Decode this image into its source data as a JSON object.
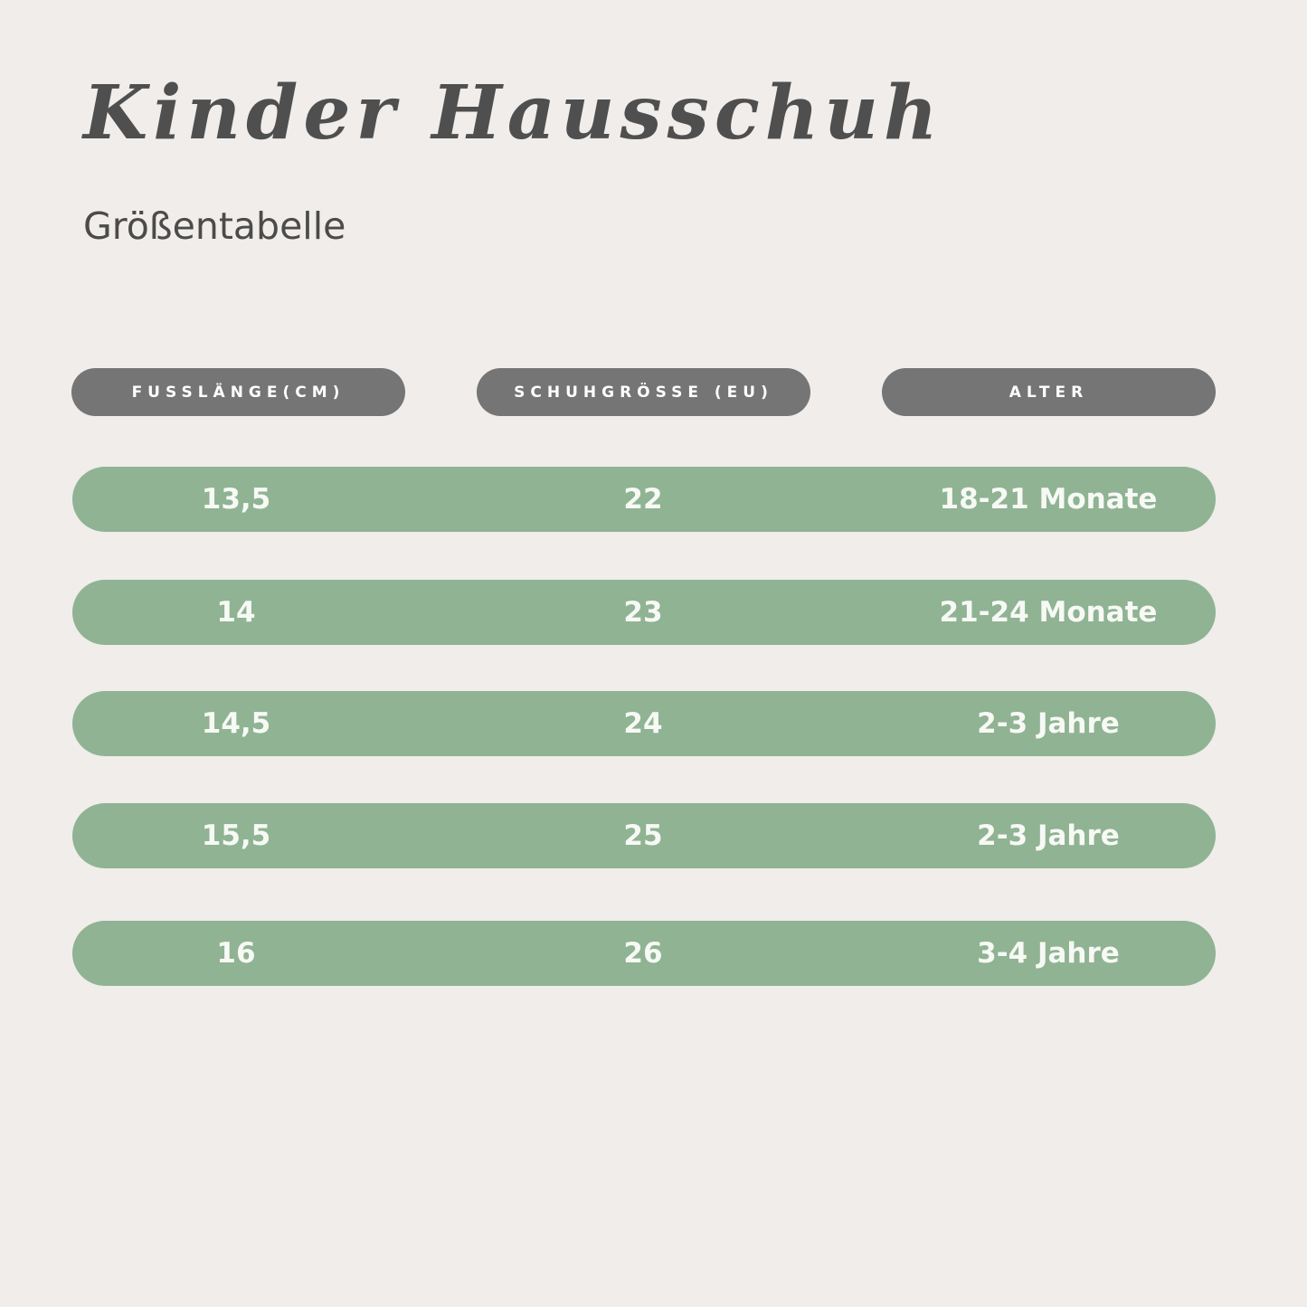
{
  "title": "Kinder Hausschuh",
  "subtitle": "Größentabelle",
  "colors": {
    "background": "#f0edea",
    "header_pill": "#757575",
    "row_pill": "#8fb393",
    "row_text": "#f7f9f5",
    "title_text": "#4f4f4f"
  },
  "table": {
    "headers": [
      "FUSSLÄNGE(CM)",
      "SCHUHGRÖSSE (EU)",
      "ALTER"
    ],
    "rows": [
      [
        "13,5",
        "22",
        "18-21 Monate"
      ],
      [
        "14",
        "23",
        "21-24 Monate"
      ],
      [
        "14,5",
        "24",
        "2-3 Jahre"
      ],
      [
        "15,5",
        "25",
        "2-3 Jahre"
      ],
      [
        "16",
        "26",
        "3-4 Jahre"
      ]
    ]
  }
}
